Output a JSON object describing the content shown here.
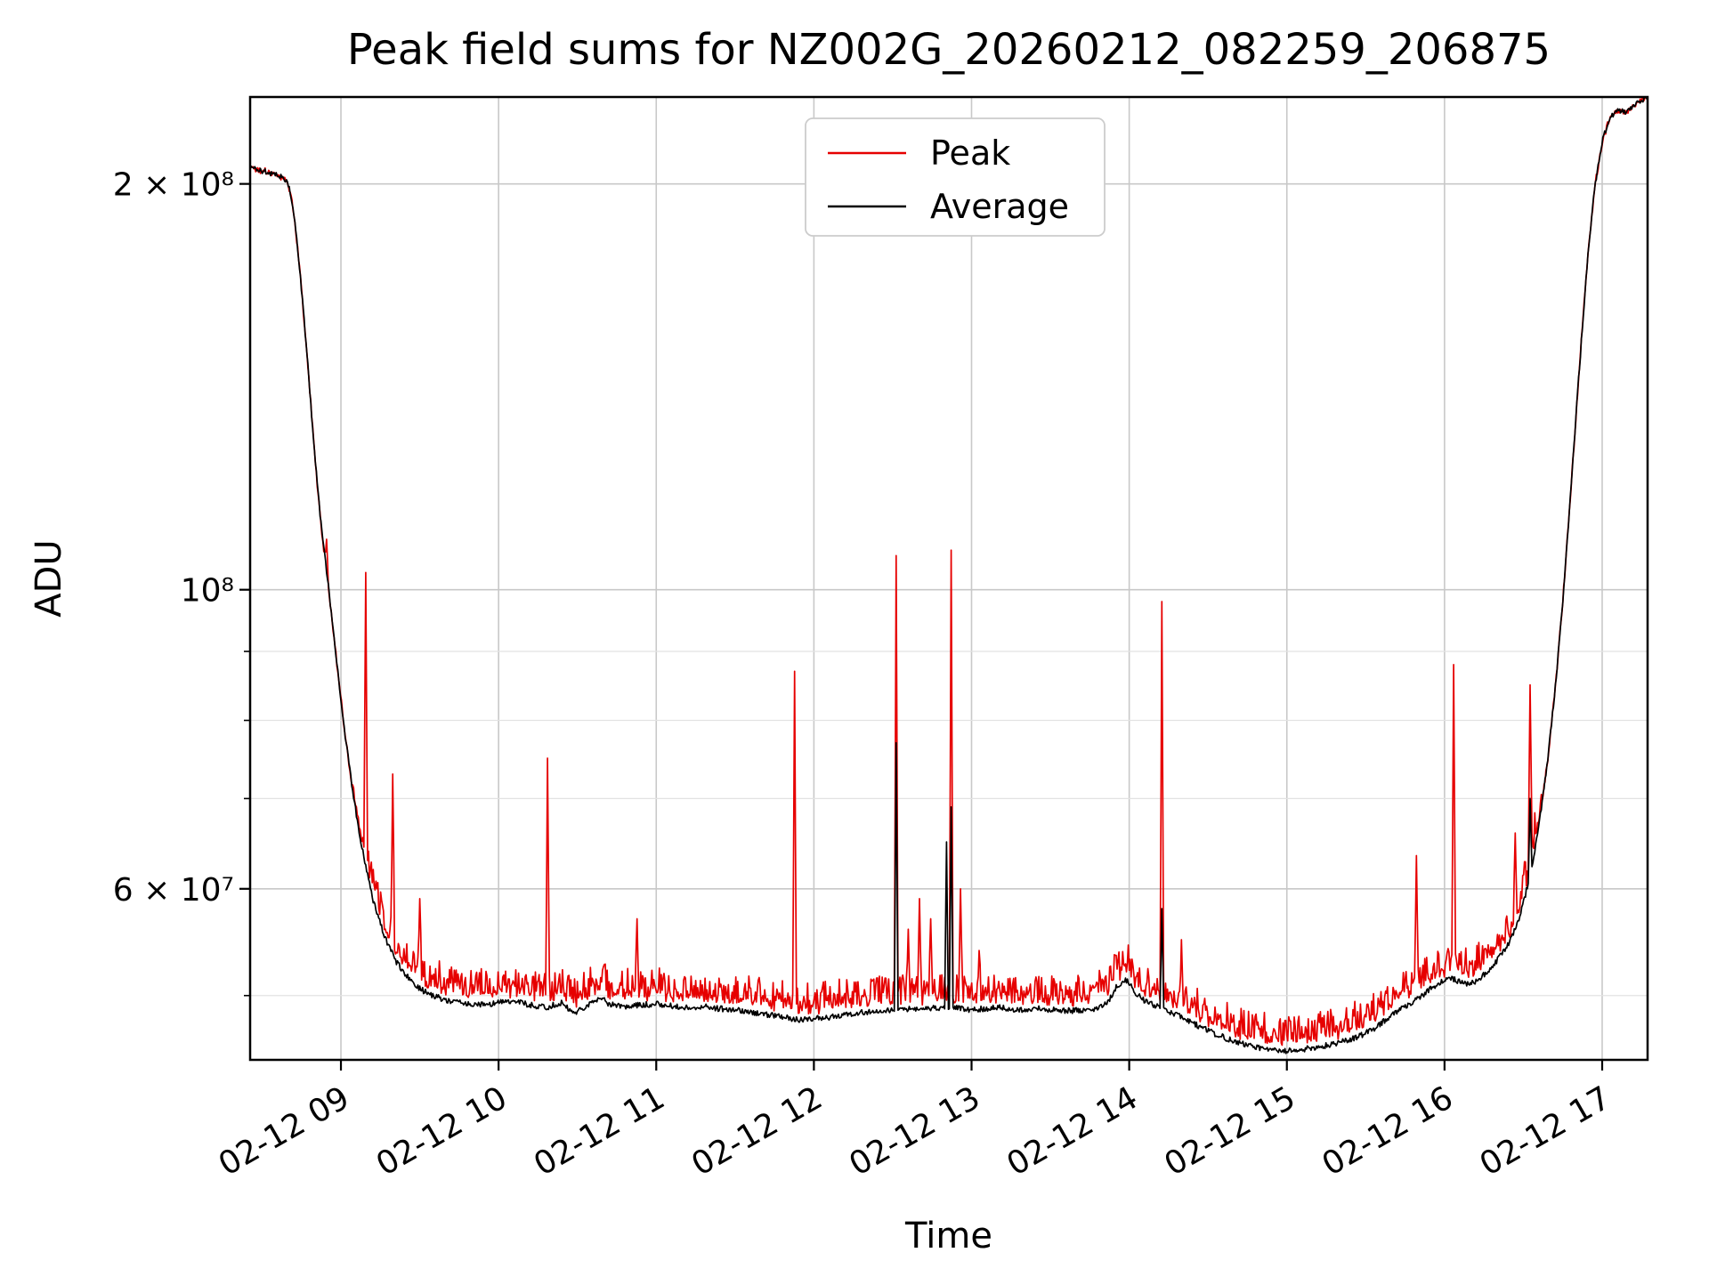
{
  "chart_data": {
    "type": "line",
    "title": "Peak field sums for NZ002G_20260212_082259_206875",
    "xlabel": "Time",
    "ylabel": "ADU",
    "yscale": "log",
    "grid": true,
    "legend_position": "upper center",
    "xlim_hours": [
      8.424,
      17.288
    ],
    "ylim": [
      44800000.0,
      232000000.0
    ],
    "values_note": "series control point and spike values are in millions of ADU; x in decimal hours of 02-12",
    "x_ticks": [
      {
        "hour": 9,
        "label": "02-12 09"
      },
      {
        "hour": 10,
        "label": "02-12 10"
      },
      {
        "hour": 11,
        "label": "02-12 11"
      },
      {
        "hour": 12,
        "label": "02-12 12"
      },
      {
        "hour": 13,
        "label": "02-12 13"
      },
      {
        "hour": 14,
        "label": "02-12 14"
      },
      {
        "hour": 15,
        "label": "02-12 15"
      },
      {
        "hour": 16,
        "label": "02-12 16"
      },
      {
        "hour": 17,
        "label": "02-12 17"
      }
    ],
    "y_ticks": [
      {
        "value": 200000000.0,
        "label": "2 × 10⁸"
      },
      {
        "value": 100000000.0,
        "label": "10⁸"
      },
      {
        "value": 60000000.0,
        "label": "6 × 10⁷"
      }
    ],
    "y_minor_gridlines": [
      50000000.0,
      70000000.0,
      80000000.0,
      90000000.0
    ],
    "colors": {
      "background": "#ffffff",
      "axis": "#000000",
      "grid_major": "#c8c8c8",
      "grid_minor": "#e2e2e2",
      "legend_border": "#cccccc"
    },
    "legend": [
      {
        "name": "Peak",
        "color": "#e60000"
      },
      {
        "name": "Average",
        "color": "#000000"
      }
    ],
    "series": [
      {
        "name": "Average",
        "color": "#000000",
        "noise_frac": 0.005,
        "control_points_millions": [
          [
            8.424,
            206
          ],
          [
            8.46,
            205.2
          ],
          [
            8.5,
            204.6
          ],
          [
            8.54,
            204.2
          ],
          [
            8.57,
            203.2
          ],
          [
            8.6,
            202.8
          ],
          [
            8.63,
            202.2
          ],
          [
            8.655,
            201.2
          ],
          [
            8.67,
            199
          ],
          [
            8.7,
            191
          ],
          [
            8.73,
            177
          ],
          [
            8.76,
            162
          ],
          [
            8.79,
            147
          ],
          [
            8.82,
            132
          ],
          [
            8.85,
            119.5
          ],
          [
            8.88,
            110
          ],
          [
            8.91,
            103
          ],
          [
            8.94,
            96
          ],
          [
            8.97,
            89
          ],
          [
            9.0,
            83
          ],
          [
            9.03,
            77.5
          ],
          [
            9.06,
            73
          ],
          [
            9.09,
            69
          ],
          [
            9.12,
            65.5
          ],
          [
            9.15,
            63
          ],
          [
            9.18,
            60.5
          ],
          [
            9.21,
            58.5
          ],
          [
            9.25,
            56.5
          ],
          [
            9.3,
            54.5
          ],
          [
            9.35,
            53
          ],
          [
            9.4,
            52
          ],
          [
            9.45,
            51.2
          ],
          [
            9.5,
            50.6
          ],
          [
            9.55,
            50.2
          ],
          [
            9.6,
            49.9
          ],
          [
            9.7,
            49.5
          ],
          [
            9.8,
            49.3
          ],
          [
            9.9,
            49.2
          ],
          [
            10.0,
            49.4
          ],
          [
            10.1,
            49.5
          ],
          [
            10.2,
            49.2
          ],
          [
            10.3,
            49.0
          ],
          [
            10.4,
            49.4
          ],
          [
            10.45,
            48.8
          ],
          [
            10.5,
            48.6
          ],
          [
            10.55,
            49.0
          ],
          [
            10.6,
            49.6
          ],
          [
            10.65,
            49.8
          ],
          [
            10.7,
            49.3
          ],
          [
            10.8,
            49.0
          ],
          [
            10.9,
            49.2
          ],
          [
            11.0,
            49.3
          ],
          [
            11.1,
            49.1
          ],
          [
            11.2,
            49.0
          ],
          [
            11.3,
            49.1
          ],
          [
            11.4,
            48.9
          ],
          [
            11.5,
            48.8
          ],
          [
            11.6,
            48.6
          ],
          [
            11.7,
            48.4
          ],
          [
            11.8,
            48.2
          ],
          [
            11.9,
            48.0
          ],
          [
            12.0,
            48.1
          ],
          [
            12.1,
            48.2
          ],
          [
            12.2,
            48.4
          ],
          [
            12.3,
            48.6
          ],
          [
            12.4,
            48.7
          ],
          [
            12.5,
            48.8
          ],
          [
            12.6,
            48.9
          ],
          [
            12.7,
            48.8
          ],
          [
            12.8,
            49.0
          ],
          [
            12.9,
            49.0
          ],
          [
            13.0,
            48.8
          ],
          [
            13.1,
            48.9
          ],
          [
            13.2,
            49.0
          ],
          [
            13.3,
            48.8
          ],
          [
            13.4,
            48.9
          ],
          [
            13.5,
            48.8
          ],
          [
            13.6,
            48.7
          ],
          [
            13.7,
            48.8
          ],
          [
            13.78,
            48.9
          ],
          [
            13.86,
            49.3
          ],
          [
            13.92,
            50.8
          ],
          [
            13.98,
            51.4
          ],
          [
            14.03,
            50.4
          ],
          [
            14.08,
            49.7
          ],
          [
            14.15,
            49.2
          ],
          [
            14.25,
            48.7
          ],
          [
            14.35,
            48.1
          ],
          [
            14.45,
            47.4
          ],
          [
            14.55,
            46.8
          ],
          [
            14.65,
            46.3
          ],
          [
            14.75,
            45.9
          ],
          [
            14.85,
            45.7
          ],
          [
            14.92,
            45.6
          ],
          [
            15.0,
            45.5
          ],
          [
            15.08,
            45.6
          ],
          [
            15.15,
            45.7
          ],
          [
            15.25,
            45.9
          ],
          [
            15.35,
            46.2
          ],
          [
            15.45,
            46.6
          ],
          [
            15.55,
            47.2
          ],
          [
            15.62,
            47.9
          ],
          [
            15.7,
            48.7
          ],
          [
            15.78,
            49.3
          ],
          [
            15.85,
            49.9
          ],
          [
            15.92,
            50.7
          ],
          [
            15.98,
            51.2
          ],
          [
            16.04,
            51.5
          ],
          [
            16.1,
            51.2
          ],
          [
            16.16,
            51.0
          ],
          [
            16.22,
            51.4
          ],
          [
            16.28,
            52.2
          ],
          [
            16.34,
            53.2
          ],
          [
            16.4,
            54.5
          ],
          [
            16.45,
            56.0
          ],
          [
            16.5,
            58.5
          ],
          [
            16.55,
            62
          ],
          [
            16.6,
            67
          ],
          [
            16.65,
            74
          ],
          [
            16.7,
            84
          ],
          [
            16.75,
            98
          ],
          [
            16.8,
            118
          ],
          [
            16.85,
            143
          ],
          [
            16.9,
            172
          ],
          [
            16.95,
            198
          ],
          [
            17.0,
            215
          ],
          [
            17.05,
            224
          ],
          [
            17.1,
            227
          ],
          [
            17.15,
            226
          ],
          [
            17.2,
            229
          ],
          [
            17.288,
            232
          ]
        ],
        "spikes_millions": [
          [
            12.52,
            77
          ],
          [
            12.84,
            65
          ],
          [
            12.87,
            69
          ],
          [
            14.21,
            58
          ],
          [
            16.54,
            70
          ]
        ]
      },
      {
        "name": "Peak",
        "color": "#e60000",
        "model": "offset_from_average",
        "offset_frac": 0.012,
        "offset_taper_millions": [
          64,
          72
        ],
        "noise_frac": 0.006,
        "noise_up_frac": 0.05,
        "spikes_millions": [
          [
            8.91,
            109
          ],
          [
            9.16,
            103
          ],
          [
            9.33,
            73
          ],
          [
            9.5,
            59
          ],
          [
            10.31,
            75
          ],
          [
            10.88,
            57
          ],
          [
            11.88,
            87
          ],
          [
            12.52,
            106
          ],
          [
            12.6,
            56
          ],
          [
            12.67,
            59
          ],
          [
            12.74,
            57
          ],
          [
            12.87,
            107
          ],
          [
            12.93,
            60
          ],
          [
            13.05,
            54
          ],
          [
            14.21,
            98
          ],
          [
            14.33,
            55
          ],
          [
            15.82,
            63.5
          ],
          [
            16.06,
            88
          ],
          [
            16.45,
            66
          ],
          [
            16.54,
            85
          ]
        ]
      }
    ]
  }
}
